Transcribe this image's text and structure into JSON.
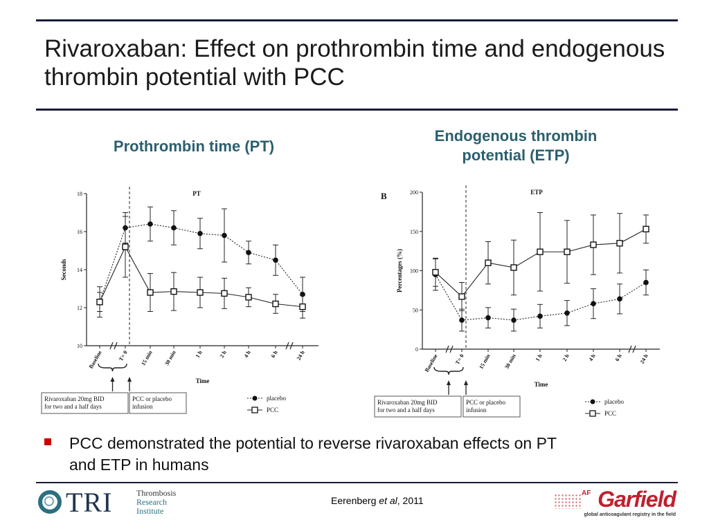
{
  "slide": {
    "title": "Rivaroxaban: Effect on prothrombin time and endogenous thrombin potential with PCC",
    "panel_pt_title": "Prothrombin time (PT)",
    "panel_etp_title": "Endogenous thrombin potential (ETP)",
    "bullet": "PCC  demonstrated the potential to reverse rivaroxaban effects on PT and ETP in humans",
    "citation_author": "Eerenberg ",
    "citation_etal": "et al",
    "citation_year": ", 2011",
    "tri_logo": {
      "letters": "TRI",
      "line1": "Thrombosis",
      "line2": "Research",
      "line3": "Institute"
    },
    "garfield_logo": {
      "prefix": "AF",
      "word": "Garfield",
      "tagline": "global anticoagulant registry in the field"
    },
    "colors": {
      "title_teal": "#2b5f6e",
      "rule": "#1a1a3a",
      "bullet_red": "#d00000",
      "garfield_red": "#c0202e"
    }
  },
  "chart_data": [
    {
      "type": "line",
      "title": "PT",
      "panel_letter": "",
      "xlabel": "Time",
      "ylabel": "Seconds",
      "categories": [
        "Baseline",
        "T= 0",
        "15 min",
        "30 min",
        "1 h",
        "2 h",
        "4 h",
        "6 h",
        "24 h"
      ],
      "ylim": [
        10,
        18
      ],
      "yticks": [
        10,
        12,
        14,
        16,
        18
      ],
      "series": [
        {
          "name": "placebo",
          "marker": "filled-circle",
          "line": "dotted",
          "values": [
            12.3,
            16.2,
            16.4,
            16.2,
            15.9,
            15.8,
            14.9,
            14.5,
            12.7
          ],
          "err": [
            0.5,
            0.8,
            0.9,
            0.9,
            0.8,
            1.4,
            0.6,
            0.8,
            0.9
          ]
        },
        {
          "name": "PCC",
          "marker": "open-square",
          "line": "solid",
          "values": [
            12.3,
            15.2,
            12.8,
            12.85,
            12.8,
            12.75,
            12.55,
            12.2,
            12.05
          ],
          "err": [
            0.8,
            1.6,
            1.0,
            1.0,
            0.8,
            0.8,
            0.5,
            0.5,
            0.6
          ]
        }
      ],
      "annotations": {
        "box_left": "Rivaroxaban 20mg BID\nfor two and a half days",
        "box_right": "PCC or placebo\ninfusion"
      },
      "legend": "bottom-right"
    },
    {
      "type": "line",
      "title": "ETP",
      "panel_letter": "B",
      "xlabel": "Time",
      "ylabel": "Percentages (%)",
      "categories": [
        "Baseline",
        "T= 0",
        "15 min",
        "30 min",
        "1 h",
        "2 h",
        "4 h",
        "6 h",
        "24 h"
      ],
      "ylim": [
        0,
        200
      ],
      "yticks": [
        0,
        50,
        100,
        150,
        200
      ],
      "series": [
        {
          "name": "placebo",
          "marker": "filled-circle",
          "line": "dotted",
          "values": [
            95,
            37,
            40,
            37,
            42,
            46,
            58,
            64,
            85
          ],
          "err": [
            20,
            14,
            13,
            14,
            15,
            16,
            19,
            19,
            16
          ]
        },
        {
          "name": "PCC",
          "marker": "open-square",
          "line": "solid",
          "values": [
            98,
            67,
            110,
            104,
            124,
            124,
            133,
            135,
            153
          ],
          "err": [
            18,
            18,
            27,
            35,
            50,
            40,
            38,
            38,
            18
          ]
        }
      ],
      "annotations": {
        "box_left": "Rivaroxaban 20mg BID\nfor two and a half days",
        "box_right": "PCC or placebo\ninfusion"
      },
      "legend": "bottom-right"
    }
  ]
}
